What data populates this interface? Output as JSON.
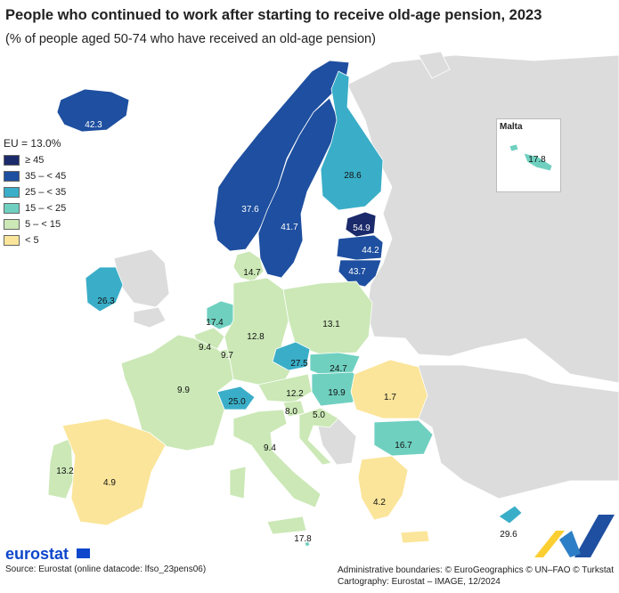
{
  "title": "People who continued to work after starting to receive old-age pension, 2023",
  "subtitle": "(% of people aged 50-74 who have received an old-age pension)",
  "legend": {
    "title": "EU = 13.0%",
    "items": [
      {
        "label": "≥ 45",
        "color": "#1b2a6b"
      },
      {
        "label": "35 – < 45",
        "color": "#1e4fa0"
      },
      {
        "label": "25 – < 35",
        "color": "#3aaec8"
      },
      {
        "label": "15 – < 25",
        "color": "#6fd0c0"
      },
      {
        "label": "5 – < 15",
        "color": "#cbe8b6"
      },
      {
        "label": "< 5",
        "color": "#fbe59a"
      }
    ]
  },
  "countries": [
    {
      "id": "iceland",
      "value": "42.3"
    },
    {
      "id": "norway",
      "value": "37.6"
    },
    {
      "id": "sweden",
      "value": "41.7"
    },
    {
      "id": "finland",
      "value": "28.6"
    },
    {
      "id": "estonia",
      "value": "54.9"
    },
    {
      "id": "latvia",
      "value": "44.2"
    },
    {
      "id": "lithuania",
      "value": "43.7"
    },
    {
      "id": "denmark",
      "value": "14.7"
    },
    {
      "id": "ireland",
      "value": "26.3"
    },
    {
      "id": "netherlands",
      "value": "17.4"
    },
    {
      "id": "belgium",
      "value": "9.4"
    },
    {
      "id": "luxembourg",
      "value": "9.7"
    },
    {
      "id": "germany",
      "value": "12.8"
    },
    {
      "id": "poland",
      "value": "13.1"
    },
    {
      "id": "czechia",
      "value": "27.5"
    },
    {
      "id": "slovakia",
      "value": "24.7"
    },
    {
      "id": "hungary",
      "value": "19.9"
    },
    {
      "id": "austria",
      "value": "12.2"
    },
    {
      "id": "switzerland",
      "value": "25.0"
    },
    {
      "id": "france",
      "value": "9.9"
    },
    {
      "id": "slovenia",
      "value": "8.0"
    },
    {
      "id": "croatia",
      "value": "5.0"
    },
    {
      "id": "romania",
      "value": "1.7"
    },
    {
      "id": "bulgaria",
      "value": "16.7"
    },
    {
      "id": "italy",
      "value": "9.4"
    },
    {
      "id": "portugal",
      "value": "13.2"
    },
    {
      "id": "spain",
      "value": "4.9"
    },
    {
      "id": "greece",
      "value": "4.2"
    },
    {
      "id": "cyprus",
      "value": "29.6"
    },
    {
      "id": "malta",
      "value": "17.8"
    },
    {
      "id": "malta_inset",
      "value": "17.8"
    }
  ],
  "inset": {
    "title": "Malta"
  },
  "footer": {
    "logo": "eurostat",
    "source": "Source: Eurostat (online datacode: lfso_23pens06)",
    "boundaries": "Administrative boundaries: © EuroGeographics © UN–FAO © Turkstat",
    "cartography": "Cartography: Eurostat – IMAGE, 12/2024"
  }
}
